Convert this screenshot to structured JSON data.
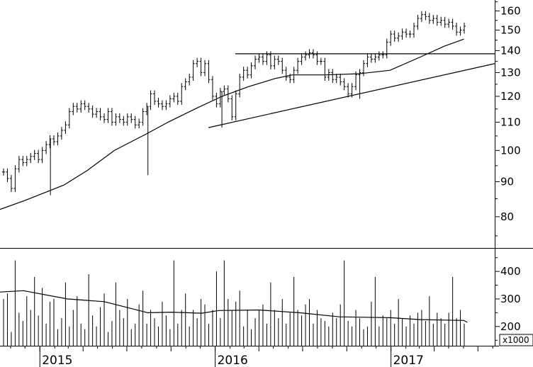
{
  "chart_data": [
    {
      "type": "ohlc",
      "panel": "price",
      "ylim": [
        72,
        166
      ],
      "yscale": "log",
      "y_ticks": [
        80,
        90,
        100,
        110,
        120,
        130,
        140,
        150,
        160
      ],
      "x_labels": [
        {
          "label": "2015",
          "date": "2015-01-01"
        },
        {
          "label": "2016",
          "date": "2016-01-01"
        },
        {
          "label": "2017",
          "date": "2017-01-01"
        }
      ],
      "weekly_close": [
        93,
        91,
        88,
        94,
        97,
        96,
        97,
        98,
        99,
        97,
        100,
        102,
        104,
        103,
        105,
        107,
        109,
        114,
        116,
        115,
        117,
        116,
        115,
        113,
        114,
        112,
        111,
        114,
        110,
        112,
        111,
        110,
        112,
        111,
        109,
        110,
        114,
        116,
        121,
        118,
        117,
        116,
        117,
        119,
        120,
        118,
        124,
        126,
        128,
        134,
        135,
        130,
        134,
        127,
        120,
        117,
        122,
        123,
        119,
        112,
        121,
        128,
        131,
        129,
        133,
        136,
        137,
        135,
        138,
        133,
        136,
        135,
        131,
        128,
        127,
        131,
        135,
        137,
        138,
        139,
        138,
        135,
        135,
        128,
        130,
        127,
        128,
        126,
        124,
        121,
        124,
        129,
        130,
        134,
        137,
        136,
        137,
        138,
        138,
        144,
        148,
        146,
        147,
        149,
        148,
        148,
        152,
        156,
        158,
        157,
        155,
        156,
        154,
        155,
        153,
        154,
        152,
        149,
        150,
        152
      ],
      "moving_average_close": [
        [
          "2014-10-10",
          82
        ],
        [
          "2014-12-01",
          84.5
        ],
        [
          "2015-02-20",
          89
        ],
        [
          "2015-04-10",
          93.5
        ],
        [
          "2015-06-05",
          100
        ],
        [
          "2015-08-14",
          106
        ],
        [
          "2015-09-25",
          110
        ],
        [
          "2015-11-20",
          115
        ],
        [
          "2016-01-15",
          120
        ],
        [
          "2016-03-11",
          124
        ],
        [
          "2016-05-06",
          127.5
        ],
        [
          "2016-06-10",
          129
        ],
        [
          "2016-08-19",
          129
        ],
        [
          "2016-10-28",
          129.5
        ],
        [
          "2016-12-30",
          131
        ],
        [
          "2017-03-03",
          137
        ],
        [
          "2017-04-21",
          142
        ],
        [
          "2017-06-02",
          145.5
        ]
      ],
      "trendlines": [
        {
          "from": [
            "2015-12-18",
            108
          ],
          "to": [
            "2017-08-05",
            134
          ]
        },
        {
          "from": [
            "2016-02-12",
            138.5
          ],
          "to": [
            "2017-08-05",
            138.5
          ]
        }
      ],
      "outlier_lows": [
        [
          "2015-08-14",
          92
        ],
        [
          "2015-01-23",
          86
        ],
        [
          "2016-01-15",
          108
        ],
        [
          "2016-10-28",
          119
        ]
      ]
    },
    {
      "type": "bar",
      "panel": "volume",
      "ylim": [
        130,
        480
      ],
      "y_ticks": [
        200,
        300,
        400
      ],
      "unit_label": "x1000",
      "volume": [
        300,
        320,
        180,
        440,
        250,
        220,
        310,
        260,
        380,
        240,
        340,
        210,
        290,
        300,
        190,
        230,
        360,
        200,
        260,
        310,
        210,
        190,
        390,
        240,
        200,
        270,
        320,
        180,
        220,
        360,
        260,
        230,
        300,
        190,
        210,
        280,
        330,
        210,
        260,
        230,
        200,
        290,
        240,
        190,
        440,
        210,
        260,
        320,
        200,
        260,
        230,
        300,
        280,
        210,
        260,
        400,
        230,
        440,
        300,
        260,
        290,
        330,
        200,
        260,
        190,
        230,
        260,
        280,
        210,
        360,
        260,
        230,
        300,
        210,
        250,
        380,
        260,
        240,
        280,
        300,
        210,
        260,
        230,
        220,
        200,
        250,
        230,
        280,
        440,
        220,
        200,
        260,
        230,
        190,
        200,
        290,
        380,
        200,
        240,
        230,
        260,
        210,
        300,
        230,
        200,
        240,
        210,
        250,
        260,
        220,
        310,
        210,
        250,
        230,
        210,
        250,
        380,
        230,
        260,
        210
      ],
      "volume_average": [
        [
          "2014-10-10",
          325
        ],
        [
          "2014-11-28",
          330
        ],
        [
          "2015-02-27",
          300
        ],
        [
          "2015-05-15",
          290
        ],
        [
          "2015-08-14",
          250
        ],
        [
          "2015-10-02",
          252
        ],
        [
          "2015-12-04",
          248
        ],
        [
          "2016-01-08",
          258
        ],
        [
          "2016-04-01",
          260
        ],
        [
          "2016-06-24",
          250
        ],
        [
          "2016-09-16",
          235
        ],
        [
          "2016-12-30",
          232
        ],
        [
          "2017-03-03",
          225
        ],
        [
          "2017-06-02",
          222
        ],
        [
          "2017-06-09",
          215
        ]
      ]
    }
  ]
}
